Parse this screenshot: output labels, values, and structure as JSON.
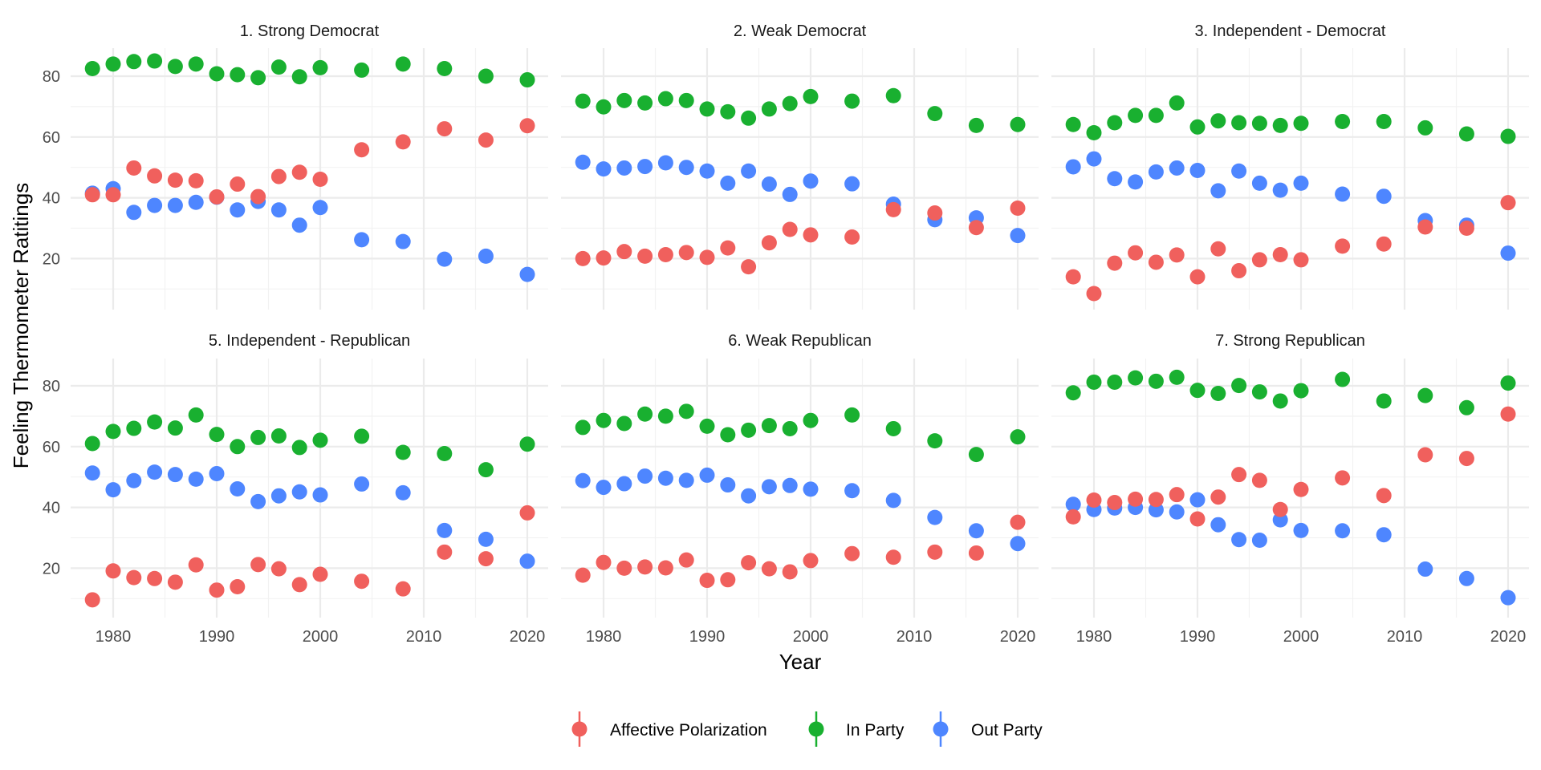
{
  "chart_data": {
    "type": "scatter",
    "title": "",
    "xlabel": "Year",
    "ylabel": "Feeling Thermometer Ratitings",
    "xlim": [
      1976.4,
      2022
    ],
    "ylim": [
      5,
      91
    ],
    "x_ticks": [
      1980,
      1990,
      2000,
      2010,
      2020
    ],
    "x_tick_labels": [
      "1980",
      "1990",
      "2000",
      "2010",
      "2020"
    ],
    "y_ticks": [
      20,
      40,
      60,
      80
    ],
    "y_tick_labels": [
      "20",
      "40",
      "60",
      "80"
    ],
    "grid": true,
    "legend": {
      "position": "bottom",
      "entries": [
        {
          "name": "Affective Polarization",
          "color": "#F0605D"
        },
        {
          "name": "In Party",
          "color": "#19B030"
        },
        {
          "name": "Out Party",
          "color": "#4E86FF"
        }
      ]
    },
    "x": [
      1978,
      1980,
      1982,
      1984,
      1986,
      1988,
      1990,
      1992,
      1994,
      1996,
      1998,
      2000,
      2004,
      2008,
      2012,
      2016,
      2020
    ],
    "panels": [
      {
        "title": "1. Strong Democrat",
        "series": [
          {
            "name": "In Party",
            "values": [
              82.5,
              84,
              84.8,
              85,
              83.2,
              84,
              80.8,
              80.5,
              79.5,
              83,
              79.8,
              82.8,
              82,
              84,
              82.5,
              80,
              78.8
            ]
          },
          {
            "name": "Out Party",
            "values": [
              41.5,
              43,
              35.2,
              37.5,
              37.5,
              38.5,
              40.2,
              36,
              38.8,
              36,
              31,
              36.8,
              26.2,
              25.6,
              19.8,
              20.8,
              14.8
            ]
          },
          {
            "name": "Affective Polarization",
            "values": [
              41,
              41,
              49.8,
              47.2,
              45.8,
              45.6,
              40.3,
              44.5,
              40.4,
              47,
              48.4,
              46.1,
              55.8,
              58.4,
              62.7,
              59,
              63.7
            ]
          }
        ]
      },
      {
        "title": "2. Weak Democrat",
        "series": [
          {
            "name": "In Party",
            "values": [
              71.8,
              69.9,
              72,
              71.2,
              72.6,
              72,
              69.2,
              68.3,
              66.2,
              69.2,
              71,
              73.3,
              71.8,
              73.6,
              67.7,
              63.8,
              64.1
            ]
          },
          {
            "name": "Out Party",
            "values": [
              51.7,
              49.5,
              49.8,
              50.3,
              51.5,
              50,
              48.8,
              44.8,
              48.8,
              44.5,
              41.1,
              45.5,
              44.6,
              37.9,
              32.8,
              33.4,
              27.6
            ]
          },
          {
            "name": "Affective Polarization",
            "values": [
              20,
              20.2,
              22.3,
              20.8,
              21.3,
              22,
              20.4,
              23.5,
              17.3,
              25.2,
              29.6,
              27.8,
              27.1,
              36.1,
              35,
              30.2,
              36.6
            ]
          }
        ]
      },
      {
        "title": "3. Independent - Democrat",
        "series": [
          {
            "name": "In Party",
            "values": [
              64.1,
              61.4,
              64.7,
              67.1,
              67.1,
              71.2,
              63.3,
              65.3,
              64.7,
              64.5,
              63.8,
              64.5,
              65.1,
              65.1,
              63,
              61,
              60.2
            ]
          },
          {
            "name": "Out Party",
            "values": [
              50.2,
              52.8,
              46.3,
              45.2,
              48.5,
              49.8,
              49,
              42.3,
              48.8,
              44.8,
              42.5,
              44.8,
              41.2,
              40.5,
              32.5,
              31,
              21.8
            ]
          },
          {
            "name": "Affective Polarization",
            "values": [
              14,
              8.5,
              18.5,
              21.9,
              18.8,
              21.2,
              14,
              23.2,
              16,
              19.6,
              21.3,
              19.6,
              24.1,
              24.8,
              30.4,
              30,
              38.4
            ]
          }
        ]
      },
      {
        "title": "5. Independent - Republican",
        "series": [
          {
            "name": "In Party",
            "values": [
              61,
              65,
              66,
              68.1,
              66.1,
              70.4,
              64,
              60,
              63,
              63.5,
              59.7,
              62.1,
              63.4,
              58.1,
              57.7,
              52.4,
              60.8
            ]
          },
          {
            "name": "Out Party",
            "values": [
              51.3,
              45.8,
              48.8,
              51.6,
              50.8,
              49.3,
              51.1,
              46.1,
              41.9,
              43.8,
              45.1,
              44.1,
              47.7,
              44.8,
              32.4,
              29.5,
              22.3
            ]
          },
          {
            "name": "Affective Polarization",
            "values": [
              9.6,
              19.1,
              16.9,
              16.6,
              15.4,
              21.1,
              12.8,
              13.9,
              21.2,
              19.8,
              14.6,
              18,
              15.7,
              13.2,
              25.3,
              23.1,
              38.2
            ]
          }
        ]
      },
      {
        "title": "6. Weak Republican",
        "series": [
          {
            "name": "In Party",
            "values": [
              66.3,
              68.6,
              67.6,
              70.7,
              70,
              71.6,
              66.7,
              63.9,
              65.4,
              66.9,
              65.9,
              68.6,
              70.4,
              65.9,
              61.9,
              57.4,
              63.2
            ]
          },
          {
            "name": "Out Party",
            "values": [
              48.8,
              46.6,
              47.8,
              50.3,
              49.6,
              48.9,
              50.6,
              47.4,
              43.8,
              46.8,
              47.2,
              46,
              45.5,
              42.3,
              36.7,
              32.3,
              28.1
            ]
          },
          {
            "name": "Affective Polarization",
            "values": [
              17.7,
              21.9,
              20,
              20.4,
              20.1,
              22.7,
              16,
              16.2,
              21.8,
              19.8,
              18.8,
              22.5,
              24.8,
              23.6,
              25.3,
              25,
              35.1
            ]
          }
        ]
      },
      {
        "title": "7. Strong Republican",
        "series": [
          {
            "name": "In Party",
            "values": [
              77.7,
              81.2,
              81.2,
              82.6,
              81.5,
              82.8,
              78.5,
              77.5,
              80.1,
              78,
              75,
              78.4,
              82.1,
              75,
              76.8,
              72.8,
              80.9
            ]
          },
          {
            "name": "Out Party",
            "values": [
              41,
              39.3,
              39.8,
              40,
              39.2,
              38.5,
              42.5,
              34.3,
              29.4,
              29.2,
              35.9,
              32.4,
              32.3,
              31,
              19.7,
              16.6,
              10.3
            ]
          },
          {
            "name": "Affective Polarization",
            "values": [
              36.9,
              42.4,
              41.6,
              42.7,
              42.6,
              44.2,
              36.2,
              43.4,
              50.8,
              48.9,
              39.3,
              45.9,
              49.7,
              43.9,
              57.3,
              56.1,
              70.7
            ]
          }
        ]
      }
    ]
  }
}
